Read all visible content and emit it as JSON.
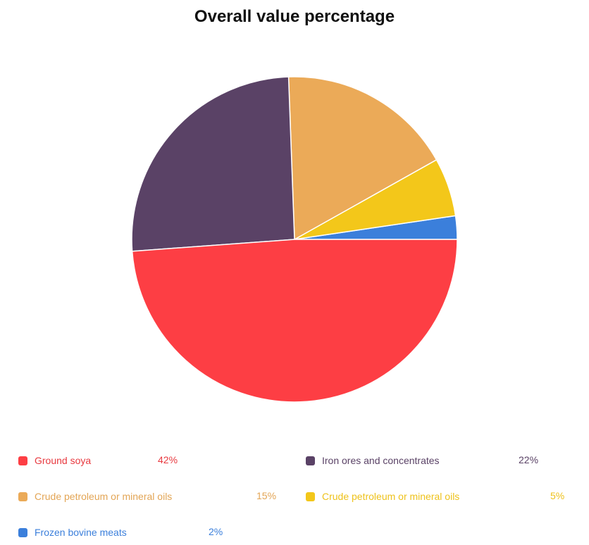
{
  "chart_data": {
    "type": "pie",
    "title": "Overall value percentage",
    "slices": [
      {
        "label": "Ground soya",
        "value": 42,
        "display": "42%",
        "color": "#fd3e44",
        "text_color": "#e8393f"
      },
      {
        "label": "Iron ores and concentrates",
        "value": 22,
        "display": "22%",
        "color": "#5a4266",
        "text_color": "#5a4266"
      },
      {
        "label": "Crude petroleum or mineral oils",
        "value": 15,
        "display": "15%",
        "color": "#ebaa58",
        "text_color": "#e3a555"
      },
      {
        "label": "Crude petroleum or mineral oils",
        "value": 5,
        "display": "5%",
        "color": "#f3c71a",
        "text_color": "#eec21b"
      },
      {
        "label": "Frozen bovine meats",
        "value": 2,
        "display": "2%",
        "color": "#3b7fdb",
        "text_color": "#3b7fdb"
      }
    ],
    "legend_position": "bottom"
  }
}
